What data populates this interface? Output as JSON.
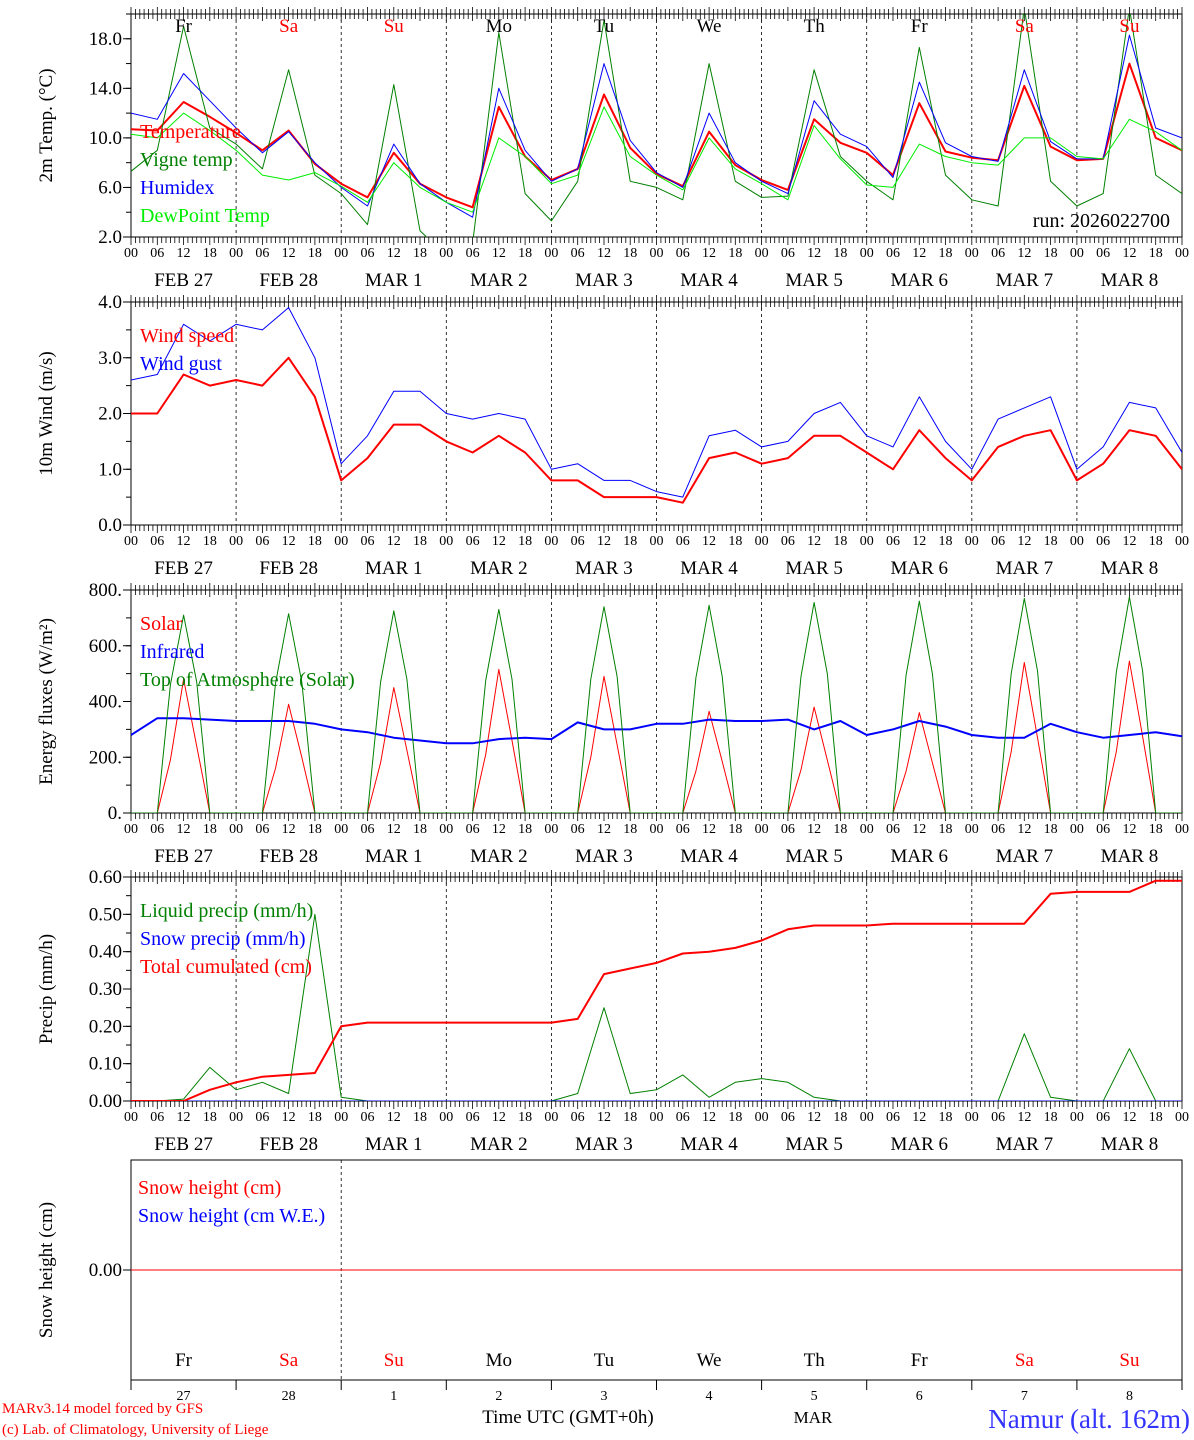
{
  "time_axis": {
    "hours": [
      "00",
      "06",
      "12",
      "18"
    ],
    "dates": [
      "FEB 27",
      "FEB 28",
      "MAR  1",
      "MAR  2",
      "MAR  3",
      "MAR  4",
      "MAR  5",
      "MAR  6",
      "MAR  7",
      "MAR  8"
    ],
    "days": [
      {
        "label": "Fr",
        "color": "#000000"
      },
      {
        "label": "Sa",
        "color": "#ff0000"
      },
      {
        "label": "Su",
        "color": "#ff0000"
      },
      {
        "label": "Mo",
        "color": "#000000"
      },
      {
        "label": "Tu",
        "color": "#000000"
      },
      {
        "label": "We",
        "color": "#000000"
      },
      {
        "label": "Th",
        "color": "#000000"
      },
      {
        "label": "Fr",
        "color": "#000000"
      },
      {
        "label": "Sa",
        "color": "#ff0000"
      },
      {
        "label": "Su",
        "color": "#ff0000"
      }
    ],
    "day_numbers": [
      "27",
      "28",
      "1",
      "2",
      "3",
      "4",
      "5",
      "6",
      "7",
      "8"
    ],
    "month": "MAR",
    "xlabel": "Time UTC (GMT+0h)",
    "range_hours": [
      0,
      240
    ]
  },
  "run_label": "run: 2026022700",
  "footer": {
    "model": "MARv3.14 model forced by GFS",
    "copyright": "(c) Lab. of Climatology, University of Liege",
    "station": "Namur (alt. 162m)"
  },
  "chart_data": [
    {
      "type": "line",
      "ylabel": "2m Temp. (°C)",
      "ylim": [
        2,
        20
      ],
      "yticks": [
        "2.0",
        "6.0",
        "10.0",
        "14.0",
        "18.0"
      ],
      "yminor_step": 2,
      "series": [
        {
          "name": "Temperature",
          "color": "#ff0000",
          "width": 2,
          "step_hours": 6,
          "values": [
            10.7,
            10.6,
            12.9,
            11.7,
            10.4,
            9.0,
            10.6,
            7.9,
            6.3,
            5.2,
            8.8,
            6.3,
            5.2,
            4.4,
            12.5,
            8.5,
            6.6,
            7.5,
            13.5,
            9.2,
            7.1,
            6.1,
            10.5,
            7.8,
            6.6,
            5.8,
            11.5,
            9.6,
            8.8,
            7.0,
            12.8,
            8.9,
            8.4,
            8.2,
            14.2,
            9.3,
            8.2,
            8.3,
            16.0,
            10.0,
            9.0
          ]
        },
        {
          "name": "Vigne temp",
          "color": "#008000",
          "width": 1,
          "step_hours": 6,
          "values": [
            7.3,
            9.0,
            19.0,
            10.8,
            9.5,
            7.5,
            15.5,
            7.0,
            5.5,
            3.0,
            14.3,
            2.5,
            0.5,
            1.5,
            18.5,
            5.5,
            3.3,
            6.5,
            19.5,
            6.5,
            6.0,
            5.0,
            16.0,
            6.5,
            5.2,
            5.3,
            15.5,
            8.5,
            6.5,
            5.0,
            17.3,
            7.0,
            5.0,
            4.5,
            20.5,
            6.5,
            4.5,
            5.5,
            20.5,
            7.0,
            5.5
          ]
        },
        {
          "name": "Humidex",
          "color": "#0000ff",
          "width": 1,
          "step_hours": 6,
          "values": [
            12.0,
            11.5,
            15.2,
            13.0,
            10.8,
            8.8,
            10.5,
            8.0,
            6.0,
            4.5,
            9.5,
            6.3,
            4.8,
            3.6,
            14.0,
            9.0,
            6.5,
            7.5,
            16.0,
            9.8,
            7.2,
            6.0,
            12.0,
            8.0,
            6.5,
            5.5,
            13.0,
            10.3,
            9.3,
            6.8,
            14.5,
            9.6,
            8.5,
            8.1,
            15.5,
            9.7,
            8.3,
            8.3,
            18.3,
            10.8,
            10.0
          ]
        },
        {
          "name": "DewPoint Temp",
          "color": "#00ee00",
          "width": 1,
          "step_hours": 6,
          "values": [
            10.3,
            10.0,
            12.0,
            10.6,
            9.0,
            7.0,
            6.6,
            7.2,
            6.1,
            4.8,
            8.0,
            6.0,
            4.8,
            4.0,
            10.0,
            8.5,
            6.3,
            7.0,
            12.5,
            8.5,
            7.0,
            5.8,
            10.0,
            7.5,
            6.3,
            5.0,
            11.0,
            8.3,
            6.2,
            6.0,
            9.5,
            8.5,
            8.0,
            7.8,
            10.0,
            10.0,
            8.5,
            8.3,
            11.5,
            10.5,
            9.0
          ]
        }
      ]
    },
    {
      "type": "line",
      "ylabel": "10m Wind (m/s)",
      "ylim": [
        0,
        4
      ],
      "yticks": [
        "0.0",
        "1.0",
        "2.0",
        "3.0",
        "4.0"
      ],
      "yminor_step": 0.5,
      "series": [
        {
          "name": "Wind speed",
          "color": "#ff0000",
          "width": 2,
          "step_hours": 6,
          "values": [
            2.0,
            2.0,
            2.7,
            2.5,
            2.6,
            2.5,
            3.0,
            2.3,
            0.8,
            1.2,
            1.8,
            1.8,
            1.5,
            1.3,
            1.6,
            1.3,
            0.8,
            0.8,
            0.5,
            0.5,
            0.5,
            0.4,
            1.2,
            1.3,
            1.1,
            1.2,
            1.6,
            1.6,
            1.3,
            1.0,
            1.7,
            1.2,
            0.8,
            1.4,
            1.6,
            1.7,
            0.8,
            1.1,
            1.7,
            1.6,
            1.0
          ]
        },
        {
          "name": "Wind gust",
          "color": "#0000ff",
          "width": 1,
          "step_hours": 6,
          "values": [
            2.6,
            2.7,
            3.6,
            3.3,
            3.6,
            3.5,
            3.9,
            3.0,
            1.1,
            1.6,
            2.4,
            2.4,
            2.0,
            1.9,
            2.0,
            1.9,
            1.0,
            1.1,
            0.8,
            0.8,
            0.6,
            0.5,
            1.6,
            1.7,
            1.4,
            1.5,
            2.0,
            2.2,
            1.6,
            1.4,
            2.3,
            1.5,
            1.0,
            1.9,
            2.1,
            2.3,
            1.0,
            1.4,
            2.2,
            2.1,
            1.3
          ]
        }
      ]
    },
    {
      "type": "line",
      "ylabel": "Energy fluxes (W/m²)",
      "ylim": [
        0,
        800
      ],
      "yticks": [
        "0.",
        "200.",
        "400.",
        "600.",
        "800."
      ],
      "yminor_step": 100,
      "series": [
        {
          "name": "Solar",
          "color": "#ff0000",
          "width": 1,
          "step_hours": 3,
          "values": [
            0,
            0,
            0,
            190,
            480,
            240,
            0,
            0,
            0,
            0,
            0,
            160,
            390,
            200,
            0,
            0,
            0,
            0,
            0,
            180,
            450,
            225,
            0,
            0,
            0,
            0,
            0,
            210,
            515,
            260,
            0,
            0,
            0,
            0,
            0,
            200,
            490,
            245,
            0,
            0,
            0,
            0,
            0,
            150,
            365,
            185,
            0,
            0,
            0,
            0,
            0,
            155,
            380,
            190,
            0,
            0,
            0,
            0,
            0,
            150,
            360,
            180,
            0,
            0,
            0,
            0,
            0,
            220,
            540,
            270,
            0,
            0,
            0,
            0,
            0,
            220,
            545,
            275,
            0,
            0,
            0
          ]
        },
        {
          "name": "Infrared",
          "color": "#0000ff",
          "width": 2,
          "step_hours": 6,
          "values": [
            280,
            340,
            340,
            335,
            330,
            330,
            330,
            320,
            300,
            290,
            270,
            260,
            250,
            250,
            265,
            270,
            265,
            325,
            300,
            300,
            320,
            320,
            335,
            330,
            330,
            335,
            300,
            330,
            280,
            300,
            330,
            310,
            280,
            270,
            270,
            320,
            290,
            270,
            280,
            290,
            275
          ]
        },
        {
          "name": "Top of Atmosphere (Solar)",
          "color": "#008000",
          "width": 1,
          "step_hours": 3,
          "values": [
            0,
            0,
            0,
            460,
            710,
            470,
            0,
            0,
            0,
            0,
            0,
            465,
            715,
            470,
            0,
            0,
            0,
            0,
            0,
            470,
            725,
            480,
            0,
            0,
            0,
            0,
            0,
            475,
            730,
            480,
            0,
            0,
            0,
            0,
            0,
            480,
            740,
            490,
            0,
            0,
            0,
            0,
            0,
            485,
            745,
            490,
            0,
            0,
            0,
            0,
            0,
            490,
            755,
            500,
            0,
            0,
            0,
            0,
            0,
            495,
            760,
            500,
            0,
            0,
            0,
            0,
            0,
            500,
            770,
            510,
            0,
            0,
            0,
            0,
            0,
            505,
            775,
            510,
            0,
            0,
            0
          ]
        }
      ]
    },
    {
      "type": "line",
      "ylabel": "Precip (mm/h)",
      "ylim": [
        0,
        0.6
      ],
      "yticks": [
        "0.00",
        "0.10",
        "0.20",
        "0.30",
        "0.40",
        "0.50",
        "0.60"
      ],
      "yminor_step": 0.05,
      "series": [
        {
          "name": "Liquid precip (mm/h)",
          "color": "#008000",
          "width": 1,
          "step_hours": 6,
          "values": [
            0,
            0,
            0.005,
            0.09,
            0.03,
            0.05,
            0.02,
            0.5,
            0.01,
            0,
            0,
            0,
            0,
            0,
            0,
            0,
            0,
            0.02,
            0.25,
            0.02,
            0.03,
            0.07,
            0.01,
            0.05,
            0.06,
            0.05,
            0.01,
            0,
            0,
            0,
            0,
            0,
            0,
            0,
            0.18,
            0.01,
            0,
            0,
            0.14,
            0,
            0
          ]
        },
        {
          "name": "Snow precip (mm/h)",
          "color": "#0000ff",
          "width": 1,
          "step_hours": 24,
          "values": [
            0,
            0,
            0,
            0,
            0,
            0,
            0,
            0,
            0,
            0,
            0
          ]
        },
        {
          "name": "Total cumulated (cm)",
          "color": "#ff0000",
          "width": 2,
          "step_hours": 6,
          "values": [
            0,
            0,
            0,
            0.03,
            0.05,
            0.065,
            0.07,
            0.075,
            0.2,
            0.21,
            0.21,
            0.21,
            0.21,
            0.21,
            0.21,
            0.21,
            0.21,
            0.22,
            0.34,
            0.355,
            0.37,
            0.395,
            0.4,
            0.41,
            0.43,
            0.46,
            0.47,
            0.47,
            0.47,
            0.475,
            0.475,
            0.475,
            0.475,
            0.475,
            0.475,
            0.555,
            0.56,
            0.56,
            0.56,
            0.59,
            0.59
          ]
        }
      ]
    },
    {
      "type": "line",
      "ylabel": "Snow height (cm)",
      "ylim": [
        -0.01,
        0.01
      ],
      "yticks": [
        "0.00"
      ],
      "yminor_step": 0,
      "series": [
        {
          "name": "Snow height (cm)",
          "color": "#ff0000",
          "width": 1,
          "step_hours": 24,
          "values": [
            0,
            0,
            0,
            0,
            0,
            0,
            0,
            0,
            0,
            0,
            0
          ]
        },
        {
          "name": "Snow height (cm W.E.)",
          "color": "#0000ff",
          "width": 0,
          "step_hours": 24,
          "values": [
            0,
            0,
            0,
            0,
            0,
            0,
            0,
            0,
            0,
            0,
            0
          ]
        }
      ]
    }
  ]
}
